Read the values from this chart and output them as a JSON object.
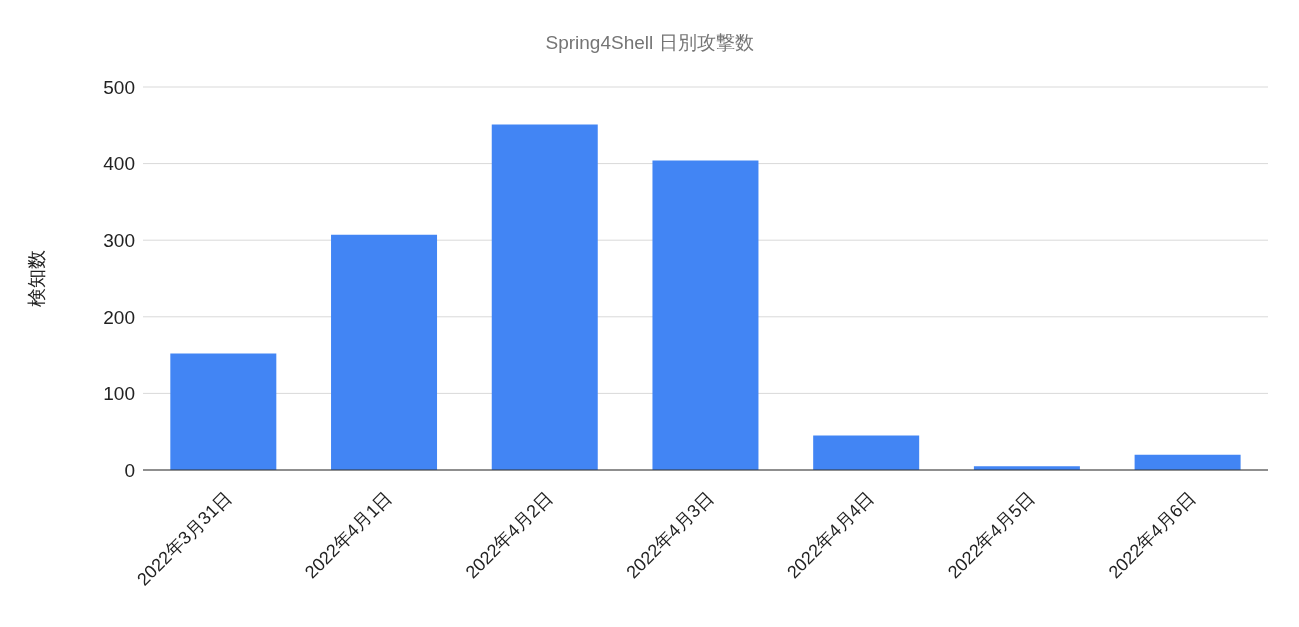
{
  "chart_data": {
    "type": "bar",
    "title": "Spring4Shell 日別攻撃数",
    "ylabel": "検知数",
    "categories": [
      "2022年3月31日",
      "2022年4月1日",
      "2022年4月2日",
      "2022年4月3日",
      "2022年4月4日",
      "2022年4月5日",
      "2022年4月6日"
    ],
    "values": [
      152,
      307,
      451,
      404,
      45,
      5,
      20
    ],
    "color": "#4285f4",
    "ylim": [
      0,
      500
    ],
    "yticks": [
      0,
      100,
      200,
      300,
      400,
      500
    ],
    "grid": "y"
  }
}
